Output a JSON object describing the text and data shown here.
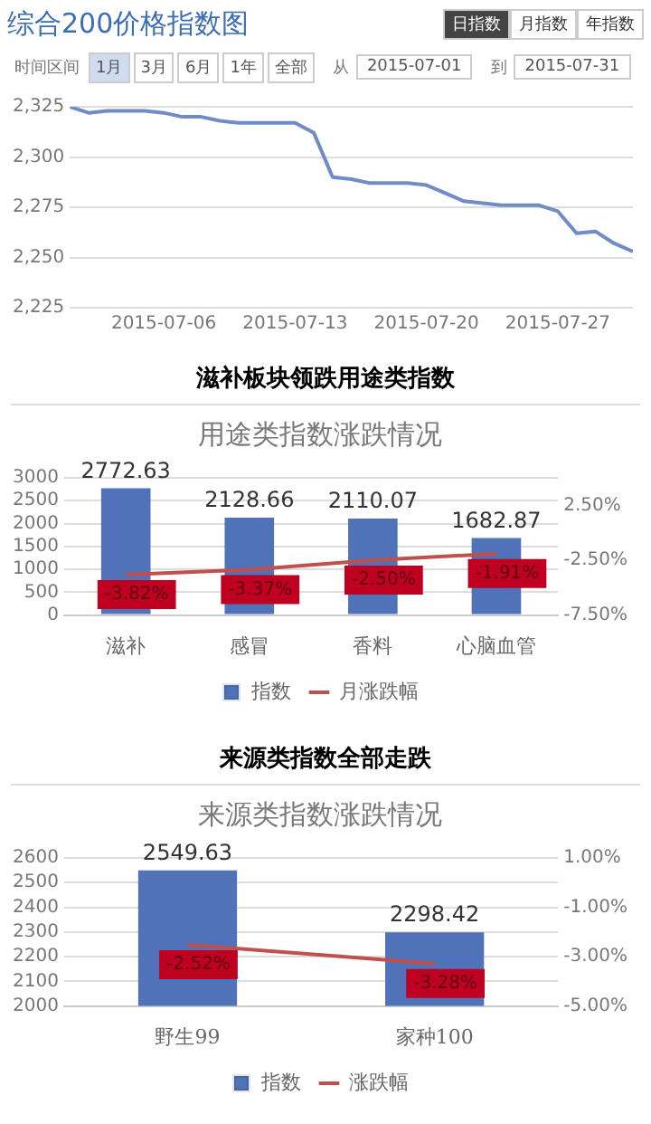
{
  "chart_data": [
    {
      "type": "line",
      "title": "综合200价格指数图",
      "annotations": [
        "日指数",
        "月指数",
        "年指数",
        "时间区间",
        "1月",
        "3月",
        "6月",
        "1年",
        "全部",
        "从",
        "2015-07-01",
        "到",
        "2015-07-31"
      ],
      "x": [
        "2015-07-01",
        "2015-07-02",
        "2015-07-03",
        "2015-07-04",
        "2015-07-05",
        "2015-07-06",
        "2015-07-07",
        "2015-07-08",
        "2015-07-09",
        "2015-07-10",
        "2015-07-11",
        "2015-07-12",
        "2015-07-13",
        "2015-07-14",
        "2015-07-15",
        "2015-07-16",
        "2015-07-17",
        "2015-07-18",
        "2015-07-19",
        "2015-07-20",
        "2015-07-21",
        "2015-07-22",
        "2015-07-23",
        "2015-07-24",
        "2015-07-25",
        "2015-07-26",
        "2015-07-27",
        "2015-07-28",
        "2015-07-29",
        "2015-07-30",
        "2015-07-31"
      ],
      "series": [
        {
          "color": "#6f8cc8",
          "values": [
            2325,
            2322,
            2323,
            2323,
            2323,
            2322,
            2320,
            2320,
            2318,
            2317,
            2317,
            2317,
            2317,
            2312,
            2290,
            2289,
            2287,
            2287,
            2287,
            2286,
            2282,
            2278,
            2277,
            2276,
            2276,
            2276,
            2273,
            2262,
            2263,
            2257,
            2253
          ]
        }
      ],
      "xlim": [
        "2015-07-01",
        "2015-07-31"
      ],
      "xticks": [
        "2015-07-06",
        "2015-07-13",
        "2015-07-20",
        "2015-07-27"
      ],
      "ylim": [
        2225,
        2325
      ],
      "yticks": [
        {
          "value": 2225,
          "label": "2,225"
        },
        {
          "value": 2250,
          "label": "2,250"
        },
        {
          "value": 2275,
          "label": "2,275"
        },
        {
          "value": 2300,
          "label": "2,300"
        },
        {
          "value": 2325,
          "label": "2,325"
        }
      ],
      "grid": "y",
      "marker": "none",
      "legend": false
    },
    {
      "type": "bar",
      "subtitle": "滋补板块领跌用途类指数",
      "title": "用途类指数涨跌情况",
      "categories": [
        "滋补",
        "感冒",
        "香料",
        "心脑血管"
      ],
      "series": [
        {
          "name": "指数",
          "color": "#4f72b8",
          "values": [
            2772.63,
            2128.66,
            2110.07,
            1682.87
          ],
          "value_labels": [
            "2772.63",
            "2128.66",
            "2110.07",
            "1682.87"
          ]
        },
        {
          "name": "月涨跌幅",
          "type": "line",
          "axis": "y2",
          "color": "#c0504d",
          "values": [
            -3.82,
            -3.37,
            -2.5,
            -1.91
          ],
          "value_labels": [
            "-3.82%",
            "-3.37%",
            "-2.50%",
            "-1.91%"
          ]
        }
      ],
      "ylim": [
        0,
        3000
      ],
      "yticks": [
        0,
        500,
        1000,
        1500,
        2000,
        2500,
        3000
      ],
      "y2lim": [
        -7.5,
        5
      ],
      "y2ticks": [
        {
          "value": -7.5,
          "label": "-7.50%"
        },
        {
          "value": -2.5,
          "label": "-2.50%"
        },
        {
          "value": 2.5,
          "label": "2.50%"
        }
      ],
      "grid": "y",
      "marker": "none",
      "legend": "bottom"
    },
    {
      "type": "bar",
      "subtitle": "来源类指数全部走跌",
      "title": "来源类指数涨跌情况",
      "categories": [
        "野生99",
        "家种100"
      ],
      "series": [
        {
          "name": "指数",
          "color": "#4f72b8",
          "values": [
            2549.63,
            2298.42
          ],
          "value_labels": [
            "2549.63",
            "2298.42"
          ]
        },
        {
          "name": "涨跌幅",
          "type": "line",
          "axis": "y2",
          "color": "#c0504d",
          "values": [
            -2.52,
            -3.28
          ],
          "value_labels": [
            "-2.52%",
            "-3.28%"
          ]
        }
      ],
      "ylim": [
        2000,
        2600
      ],
      "yticks": [
        2000,
        2100,
        2200,
        2300,
        2400,
        2500,
        2600
      ],
      "y2lim": [
        -5,
        1
      ],
      "y2ticks": [
        {
          "value": -5,
          "label": "-5.00%"
        },
        {
          "value": -3,
          "label": "-3.00%"
        },
        {
          "value": -1,
          "label": "-1.00%"
        },
        {
          "value": 1,
          "label": "1.00%"
        }
      ],
      "grid": "y",
      "marker": "none",
      "legend": "bottom"
    }
  ]
}
